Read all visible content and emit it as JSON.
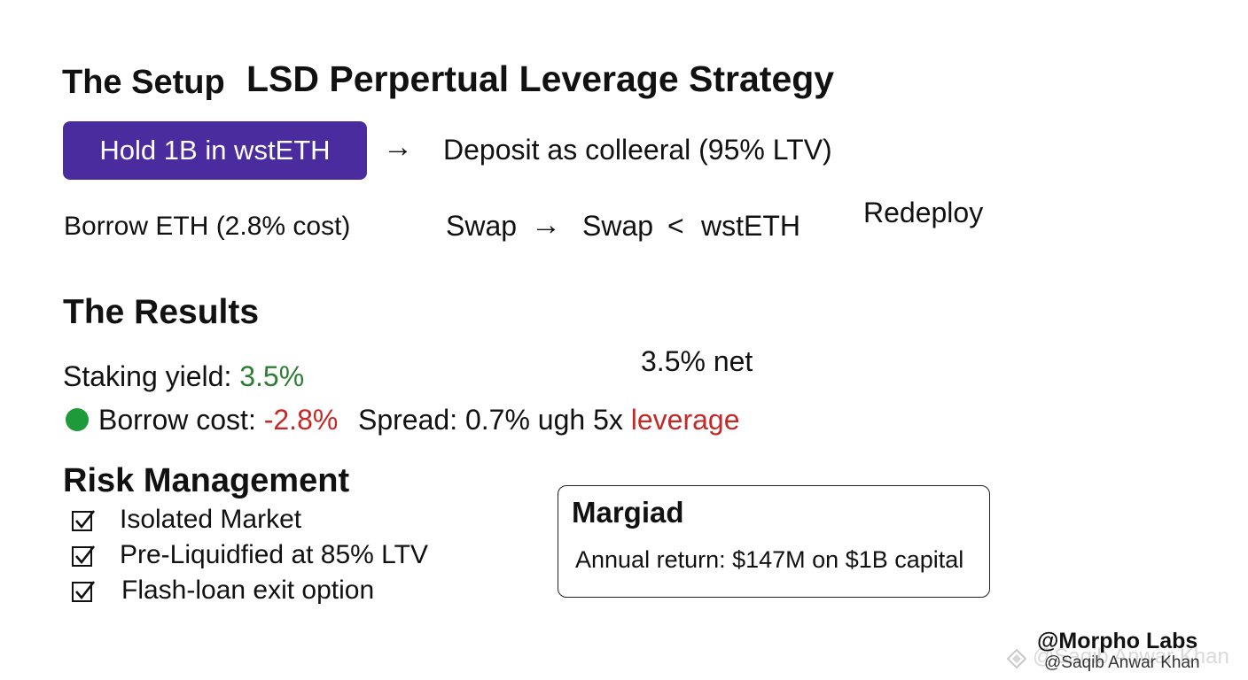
{
  "header": {
    "setup_heading": "The Setup",
    "title": "LSD Perpertual Leverage Strategy"
  },
  "setup": {
    "hold_button": "Hold 1B in wstETH",
    "arrow": "→",
    "deposit": "Deposit as colleeral (95% LTV)",
    "borrow": "Borrow ETH (2.8% cost)",
    "swap_1": "Swap",
    "swap_2": "Swap",
    "lt": "<",
    "wsteth": "wstETH",
    "redeploy": "Redeploy"
  },
  "results": {
    "heading": "The Results",
    "net": "3.5% net",
    "staking_label": "Staking yield: ",
    "staking_value": "3.5%",
    "borrow_label": "Borrow cost: ",
    "borrow_value": "-2.8%",
    "spread_text": "Spread: 0.7% ugh 5x ",
    "leverage_word": "leverage"
  },
  "risk": {
    "heading": "Risk Management",
    "items": [
      "Isolated Market",
      "Pre-Liquidfied at 85% LTV",
      "Flash-loan exit option"
    ]
  },
  "summary_box": {
    "title": "Margiad",
    "text": "Annual return: $147M on $1B capital"
  },
  "watermark": {
    "brand": "@Morpho Labs",
    "handle": "@Saqib Anwar Khan",
    "ghost": "@Saqib Anwar Khan"
  },
  "colors": {
    "button_bg": "#4a2c9e",
    "positive": "#2e7d32",
    "negative": "#c62828",
    "dot": "#1e9a3a"
  }
}
